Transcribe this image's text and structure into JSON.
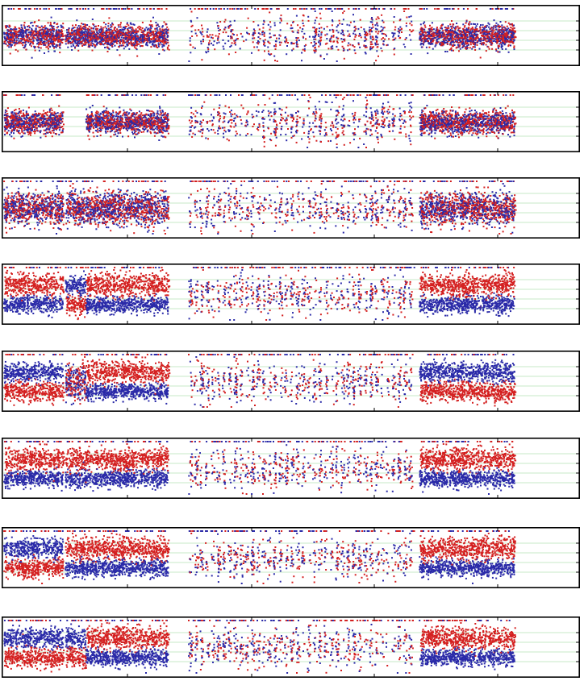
{
  "chart_data": [
    {
      "type": "scatter",
      "panel": 1,
      "xlim": [
        0,
        1
      ],
      "ylim": [
        0,
        1
      ],
      "grid": true,
      "series": [
        {
          "color": "#d42020"
        },
        {
          "color": "#2a2aa8"
        }
      ],
      "states": [
        "noisy-balanced",
        "noisy-balanced",
        "noisy-balanced",
        "noisy-balanced"
      ]
    },
    {
      "type": "scatter",
      "panel": 2,
      "xlim": [
        0,
        1
      ],
      "ylim": [
        0,
        1
      ],
      "grid": true,
      "series": [
        {
          "color": "#d42020"
        },
        {
          "color": "#2a2aa8"
        }
      ],
      "states": [
        "noisy-balanced",
        "gap",
        "noisy-balanced",
        "noisy-balanced"
      ]
    },
    {
      "type": "scatter",
      "panel": 3,
      "xlim": [
        0,
        1
      ],
      "ylim": [
        0,
        1
      ],
      "grid": true,
      "series": [
        {
          "color": "#d42020"
        },
        {
          "color": "#2a2aa8"
        }
      ],
      "states": [
        "wide-balanced",
        "wide-balanced",
        "wide-balanced",
        "wide-balanced"
      ]
    },
    {
      "type": "scatter",
      "panel": 4,
      "xlim": [
        0,
        1
      ],
      "ylim": [
        0,
        1
      ],
      "grid": true,
      "series": [
        {
          "color": "#d42020"
        },
        {
          "color": "#2a2aa8"
        }
      ],
      "states": [
        "red-high",
        "blue-high",
        "red-high",
        "red-high"
      ]
    },
    {
      "type": "scatter",
      "panel": 5,
      "xlim": [
        0,
        1
      ],
      "ylim": [
        0,
        1
      ],
      "grid": true,
      "series": [
        {
          "color": "#d42020"
        },
        {
          "color": "#2a2aa8"
        }
      ],
      "states": [
        "blue-high",
        "mixed",
        "red-high",
        "blue-high"
      ]
    },
    {
      "type": "scatter",
      "panel": 6,
      "xlim": [
        0,
        1
      ],
      "ylim": [
        0,
        1
      ],
      "grid": true,
      "series": [
        {
          "color": "#d42020"
        },
        {
          "color": "#2a2aa8"
        }
      ],
      "states": [
        "red-high",
        "sparse",
        "red-high",
        "red-high"
      ]
    },
    {
      "type": "scatter",
      "panel": 7,
      "xlim": [
        0,
        1
      ],
      "ylim": [
        0,
        1
      ],
      "grid": true,
      "series": [
        {
          "color": "#d42020"
        },
        {
          "color": "#2a2aa8"
        }
      ],
      "states": [
        "blue-high",
        "red-high",
        "red-high",
        "red-high"
      ]
    },
    {
      "type": "scatter",
      "panel": 8,
      "xlim": [
        0,
        1
      ],
      "ylim": [
        0,
        1
      ],
      "grid": true,
      "series": [
        {
          "color": "#d42020"
        },
        {
          "color": "#2a2aa8"
        }
      ],
      "states": [
        "blue-high",
        "blue-high",
        "red-high",
        "red-high"
      ]
    }
  ]
}
